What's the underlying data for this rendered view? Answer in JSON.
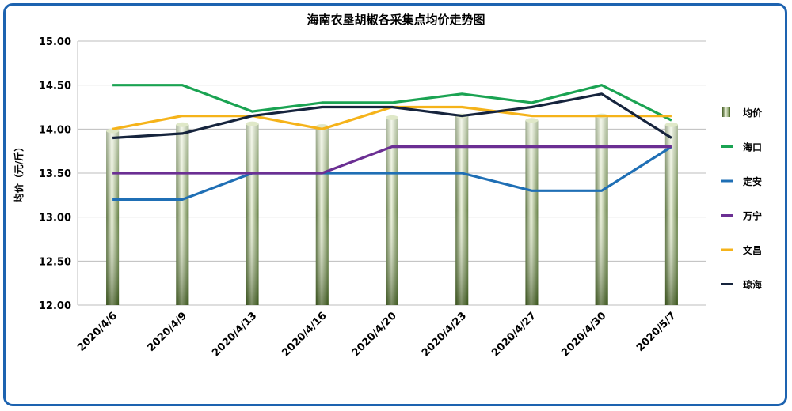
{
  "chart_data": {
    "type": "bar",
    "title": "海南农垦胡椒各采集点均价走势图",
    "ylabel": "均价（元/斤）",
    "xlabel": "",
    "ylim": [
      12.0,
      15.0
    ],
    "yticks": [
      "12.00",
      "12.50",
      "13.00",
      "13.50",
      "14.00",
      "14.50",
      "15.00"
    ],
    "grid": true,
    "legend_position": "right",
    "categories": [
      "2020/4/6",
      "2020/4/9",
      "2020/4/13",
      "2020/4/16",
      "2020/4/20",
      "2020/4/23",
      "2020/4/27",
      "2020/4/30",
      "2020/5/7"
    ],
    "bar_series": {
      "name": "均价",
      "type": "bar",
      "color": "#6b8e3a",
      "values": [
        13.98,
        14.05,
        14.06,
        14.03,
        14.13,
        14.15,
        14.1,
        14.15,
        14.05
      ]
    },
    "series": [
      {
        "name": "海口",
        "type": "line",
        "color": "#1aa352",
        "values": [
          14.5,
          14.5,
          14.2,
          14.3,
          14.3,
          14.4,
          14.3,
          14.5,
          14.1
        ]
      },
      {
        "name": "定安",
        "type": "line",
        "color": "#1f6fb5",
        "values": [
          13.2,
          13.2,
          13.5,
          13.5,
          13.5,
          13.5,
          13.3,
          13.3,
          13.8
        ]
      },
      {
        "name": "万宁",
        "type": "line",
        "color": "#6b2f93",
        "values": [
          13.5,
          13.5,
          13.5,
          13.5,
          13.8,
          13.8,
          13.8,
          13.8,
          13.8
        ]
      },
      {
        "name": "文昌",
        "type": "line",
        "color": "#f5b31a",
        "values": [
          14.0,
          14.15,
          14.15,
          14.0,
          14.25,
          14.25,
          14.15,
          14.15,
          14.15
        ]
      },
      {
        "name": "琼海",
        "type": "line",
        "color": "#16243d",
        "values": [
          13.9,
          13.95,
          14.15,
          14.25,
          14.25,
          14.15,
          14.25,
          14.4,
          13.9
        ]
      }
    ]
  }
}
